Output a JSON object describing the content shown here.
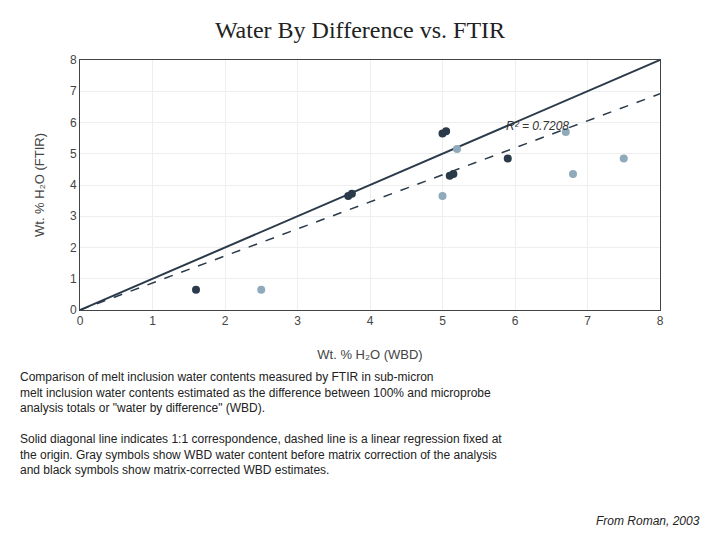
{
  "chart_data": {
    "type": "scatter",
    "title": "Water By Difference vs. FTIR",
    "xlabel": "Wt. % H₂O (WBD)",
    "ylabel": "Wt. % H₂O (FTIR)",
    "xlim": [
      0.0,
      8.0
    ],
    "ylim": [
      0.0,
      8.0
    ],
    "xticks": [
      0,
      1,
      2,
      3,
      4,
      5,
      6,
      7,
      8
    ],
    "yticks": [
      0,
      1,
      2,
      3,
      4,
      5,
      6,
      7,
      8
    ],
    "grid": true,
    "series": [
      {
        "type": "line",
        "line_style": "solid",
        "color": "#2a3a4a",
        "x": [
          0,
          8
        ],
        "values": [
          0,
          8
        ]
      },
      {
        "type": "line",
        "line_style": "dashed",
        "color": "#2a3a4a",
        "x": [
          0,
          8
        ],
        "values": [
          0,
          6.92
        ]
      },
      {
        "type": "scatter",
        "marker": "circle",
        "color": "#2a3a4a",
        "x": [
          1.6,
          3.7,
          3.75,
          5.0,
          5.05,
          5.1,
          5.15,
          5.9
        ],
        "values": [
          0.65,
          3.65,
          3.72,
          5.65,
          5.72,
          4.3,
          4.35,
          4.85
        ]
      },
      {
        "type": "scatter",
        "marker": "circle",
        "color": "#8faabb",
        "x": [
          2.5,
          5.2,
          5.0,
          6.7,
          6.8,
          7.5
        ],
        "values": [
          0.65,
          5.15,
          3.65,
          5.7,
          4.35,
          4.85
        ]
      }
    ],
    "annotations": [
      {
        "text": "R² = 0.7208",
        "x": 5.85,
        "y": 5.9
      }
    ],
    "caption": [
      [
        "Comparison of melt inclusion water contents measured by FTIR in sub-micron",
        "melt inclusion water contents estimated as the difference between 100% and microprobe",
        "analysis totals or \"water by difference\" (WBD)."
      ],
      [
        "Solid diagonal line indicates 1:1 correspondence, dashed line is a linear regression fixed at",
        "the origin. Gray symbols show WBD water content before matrix correction of the analysis",
        "and black symbols show matrix-corrected WBD estimates."
      ]
    ],
    "source": "From Roman, 2003"
  }
}
